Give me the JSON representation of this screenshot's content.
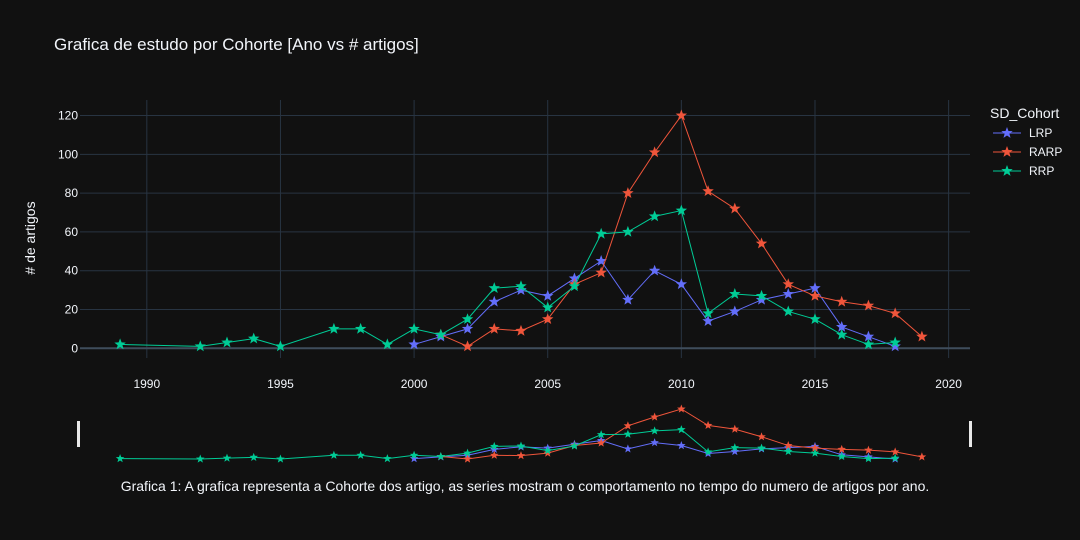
{
  "chart_data": {
    "type": "line",
    "title": "Grafica de estudo por Cohorte [Ano vs # artigos]",
    "xlabel": "",
    "ylabel": "# de artigos",
    "xlim": [
      1987.5,
      2020.8
    ],
    "ylim": [
      -5,
      128
    ],
    "x_ticks": [
      1990,
      1995,
      2000,
      2005,
      2010,
      2015,
      2020
    ],
    "y_ticks": [
      0,
      20,
      40,
      60,
      80,
      100,
      120
    ],
    "grid": true,
    "legend": {
      "title": "SD_Cohort",
      "placement": "top-right"
    },
    "marker": "star",
    "rangeslider": true,
    "caption": "Grafica 1: A grafica representa a Cohorte dos artigo, as series mostram o comportamento no tempo do numero de artigos por ano.",
    "series": [
      {
        "name": "LRP",
        "color": "#636efa",
        "x": [
          2000,
          2001,
          2002,
          2003,
          2004,
          2005,
          2006,
          2007,
          2008,
          2009,
          2010,
          2011,
          2012,
          2013,
          2014,
          2015,
          2016,
          2017,
          2018
        ],
        "y": [
          2,
          6,
          10,
          24,
          30,
          27,
          36,
          45,
          25,
          40,
          33,
          14,
          19,
          25,
          28,
          31,
          11,
          6,
          1
        ]
      },
      {
        "name": "RARP",
        "color": "#ef553b",
        "x": [
          2001,
          2002,
          2003,
          2004,
          2005,
          2006,
          2007,
          2008,
          2009,
          2010,
          2011,
          2012,
          2013,
          2014,
          2015,
          2016,
          2017,
          2018,
          2019
        ],
        "y": [
          7,
          1,
          10,
          9,
          15,
          33,
          39,
          80,
          101,
          120,
          81,
          72,
          54,
          33,
          27,
          24,
          22,
          18,
          6
        ]
      },
      {
        "name": "RRP",
        "color": "#00cc96",
        "x": [
          1989,
          1992,
          1993,
          1994,
          1995,
          1997,
          1998,
          1999,
          2000,
          2001,
          2002,
          2003,
          2004,
          2005,
          2006,
          2007,
          2008,
          2009,
          2010,
          2011,
          2012,
          2013,
          2014,
          2015,
          2016,
          2017,
          2018
        ],
        "y": [
          2,
          1,
          3,
          5,
          1,
          10,
          10,
          2,
          10,
          7,
          15,
          31,
          32,
          21,
          32,
          59,
          60,
          68,
          71,
          18,
          28,
          27,
          19,
          15,
          7,
          2,
          3
        ]
      }
    ]
  }
}
